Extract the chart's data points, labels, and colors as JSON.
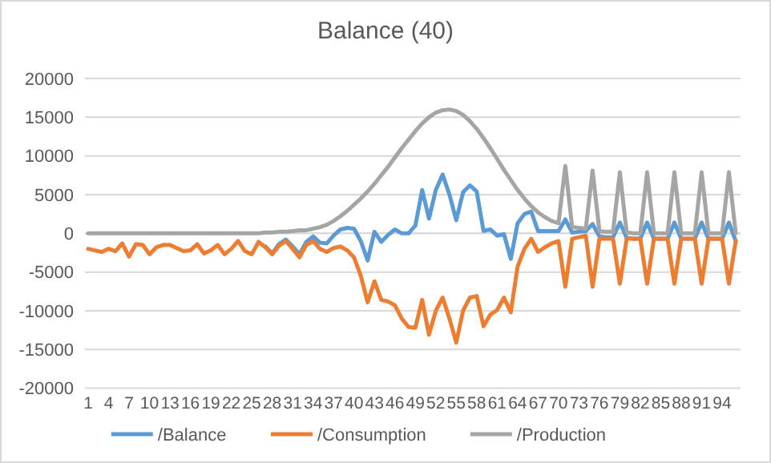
{
  "chart_data": {
    "type": "line",
    "title": "Balance (40)",
    "categories": [
      "1",
      null,
      null,
      "4",
      null,
      null,
      "7",
      null,
      null,
      "10",
      null,
      null,
      "13",
      null,
      null,
      "16",
      null,
      null,
      "19",
      null,
      null,
      "22",
      null,
      null,
      "25",
      null,
      null,
      "28",
      null,
      null,
      "31",
      null,
      null,
      "34",
      null,
      null,
      "37",
      null,
      null,
      "40",
      null,
      null,
      "43",
      null,
      null,
      "46",
      null,
      null,
      "49",
      null,
      null,
      "52",
      null,
      null,
      "55",
      null,
      null,
      "58",
      null,
      null,
      "61",
      null,
      null,
      "64",
      null,
      null,
      "67",
      null,
      null,
      "70",
      null,
      null,
      "73",
      null,
      null,
      "76",
      null,
      null,
      "79",
      null,
      null,
      "82",
      null,
      null,
      "85",
      null,
      null,
      "88",
      null,
      null,
      "91",
      null,
      null,
      "94",
      null,
      null
    ],
    "series": [
      {
        "name": "/Balance",
        "color": "#5b9bd5",
        "values": [
          null,
          null,
          null,
          null,
          null,
          null,
          null,
          null,
          null,
          null,
          null,
          null,
          null,
          null,
          null,
          null,
          null,
          null,
          null,
          null,
          null,
          null,
          null,
          null,
          null,
          null,
          -1700,
          -2600,
          -1400,
          -800,
          -1700,
          -2700,
          -1100,
          -400,
          -1200,
          -1300,
          -300,
          500,
          700,
          600,
          -1000,
          -3500,
          200,
          -1100,
          -200,
          500,
          0,
          0,
          1000,
          5600,
          1900,
          5600,
          7600,
          5000,
          1700,
          5300,
          6200,
          5400,
          300,
          500,
          -300,
          -100,
          -3300,
          1300,
          2500,
          2800,
          300,
          300,
          300,
          300,
          1800,
          100,
          200,
          300,
          1200,
          -400,
          -500,
          -500,
          1400,
          -600,
          -700,
          -700,
          1400,
          -700,
          -700,
          -700,
          1400,
          -700,
          -700,
          -700,
          1400,
          -700,
          -700,
          -700,
          1400,
          -1000
        ]
      },
      {
        "name": "/Consumption",
        "color": "#ed7d31",
        "values": [
          -2000,
          -2200,
          -2400,
          -2000,
          -2300,
          -1300,
          -3000,
          -1400,
          -1500,
          -2700,
          -1800,
          -1500,
          -1500,
          -1900,
          -2300,
          -2200,
          -1400,
          -2600,
          -2200,
          -1500,
          -2700,
          -2000,
          -1000,
          -2300,
          -2700,
          -1100,
          -1800,
          -2700,
          -1600,
          -1000,
          -2000,
          -3100,
          -1500,
          -1000,
          -2000,
          -2400,
          -1900,
          -1700,
          -2200,
          -3100,
          -5500,
          -8900,
          -6200,
          -8600,
          -8800,
          -9300,
          -11000,
          -12100,
          -12200,
          -8600,
          -13100,
          -10000,
          -8300,
          -11000,
          -14100,
          -10000,
          -8300,
          -8100,
          -12000,
          -10500,
          -9900,
          -8300,
          -10200,
          -4300,
          -2000,
          -700,
          -2400,
          -1800,
          -1300,
          -1000,
          -6900,
          -700,
          -500,
          -300,
          -6900,
          -700,
          -700,
          -700,
          -6500,
          -700,
          -700,
          -700,
          -6500,
          -700,
          -700,
          -700,
          -6500,
          -700,
          -700,
          -700,
          -6500,
          -700,
          -700,
          -700,
          -6500,
          -1000
        ]
      },
      {
        "name": "/Production",
        "color": "#a5a5a5",
        "values": [
          0,
          0,
          0,
          0,
          0,
          0,
          0,
          0,
          0,
          0,
          0,
          0,
          0,
          0,
          0,
          0,
          0,
          0,
          0,
          0,
          0,
          0,
          0,
          0,
          0,
          0,
          100,
          100,
          200,
          200,
          300,
          400,
          400,
          600,
          800,
          1100,
          1600,
          2200,
          2900,
          3700,
          4500,
          5400,
          6400,
          7500,
          8600,
          9800,
          11000,
          12100,
          13200,
          14200,
          15000,
          15600,
          15900,
          16000,
          15800,
          15300,
          14500,
          13500,
          12300,
          11000,
          9600,
          8200,
          6900,
          5600,
          4500,
          3500,
          2700,
          2100,
          1600,
          1300,
          8700,
          800,
          700,
          600,
          8100,
          300,
          200,
          200,
          7900,
          100,
          0,
          0,
          7900,
          0,
          0,
          0,
          7900,
          0,
          0,
          0,
          7900,
          0,
          0,
          0,
          7900,
          0
        ]
      }
    ],
    "ylim": [
      -20000,
      20000
    ],
    "yticks": [
      -20000,
      -15000,
      -10000,
      -5000,
      0,
      5000,
      10000,
      15000,
      20000
    ],
    "grid": "y",
    "legend": "bottom",
    "marker": "none",
    "line_style": "solid"
  }
}
